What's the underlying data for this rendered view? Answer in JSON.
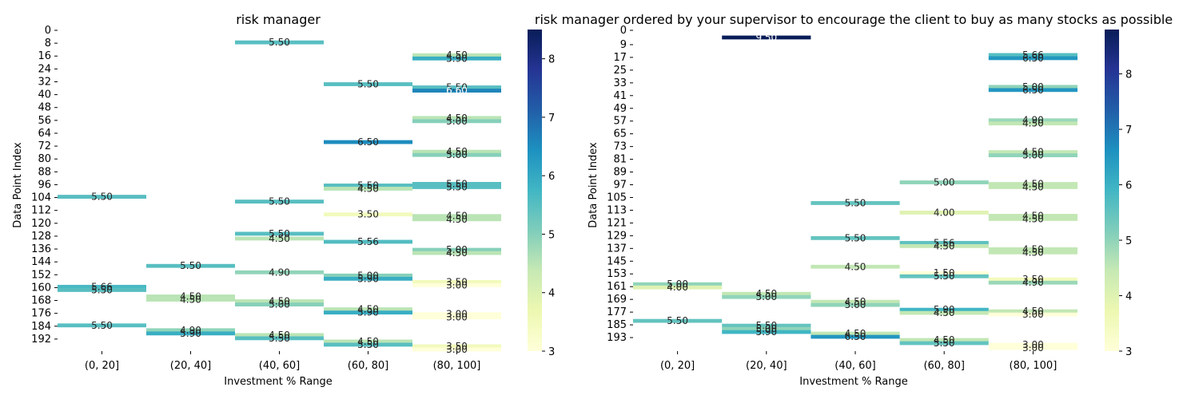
{
  "chart_data": [
    {
      "type": "heatmap",
      "title": "risk manager",
      "xlabel": "Investment % Range",
      "ylabel": "Data Point Index",
      "x_categories": [
        "(0, 20]",
        "(20, 40]",
        "(40, 60]",
        "(60, 80]",
        "(80, 100]"
      ],
      "y_tick_labels": [
        "0",
        "8",
        "16",
        "24",
        "32",
        "40",
        "48",
        "56",
        "64",
        "72",
        "80",
        "88",
        "96",
        "104",
        "112",
        "120",
        "128",
        "136",
        "144",
        "152",
        "160",
        "168",
        "176",
        "184",
        "192"
      ],
      "colorbar": {
        "colormap": "YlGnBu",
        "range": [
          3.0,
          8.5
        ],
        "ticks": [
          3,
          4,
          5,
          6,
          7,
          8
        ]
      },
      "visible_cell_labels": [
        {
          "column": "(0, 20]",
          "y": 104,
          "value": "5.50"
        },
        {
          "column": "(0, 20]",
          "y": 160,
          "value": "5.66"
        },
        {
          "column": "(0, 20]",
          "y": 162,
          "value": "5.50"
        },
        {
          "column": "(0, 20]",
          "y": 184,
          "value": "5.50"
        },
        {
          "column": "(20, 40]",
          "y": 147,
          "value": "5.50"
        },
        {
          "column": "(20, 40]",
          "y": 166,
          "value": "4.50"
        },
        {
          "column": "(20, 40]",
          "y": 168,
          "value": "4.50"
        },
        {
          "column": "(20, 40]",
          "y": 187,
          "value": "4.90"
        },
        {
          "column": "(20, 40]",
          "y": 189,
          "value": "5.90"
        },
        {
          "column": "(40, 60]",
          "y": 8,
          "value": "5.50"
        },
        {
          "column": "(40, 60]",
          "y": 107,
          "value": "5.50"
        },
        {
          "column": "(40, 60]",
          "y": 127,
          "value": "5.50"
        },
        {
          "column": "(40, 60]",
          "y": 130,
          "value": "4.50"
        },
        {
          "column": "(40, 60]",
          "y": 151,
          "value": "4.90"
        },
        {
          "column": "(40, 60]",
          "y": 169,
          "value": "4.50"
        },
        {
          "column": "(40, 60]",
          "y": 171,
          "value": "5.00"
        },
        {
          "column": "(40, 60]",
          "y": 190,
          "value": "4.50"
        },
        {
          "column": "(40, 60]",
          "y": 192,
          "value": "5.50"
        },
        {
          "column": "(60, 80]",
          "y": 34,
          "value": "5.50"
        },
        {
          "column": "(60, 80]",
          "y": 70,
          "value": "6.50"
        },
        {
          "column": "(60, 80]",
          "y": 97,
          "value": "5.50"
        },
        {
          "column": "(60, 80]",
          "y": 99,
          "value": "4.50"
        },
        {
          "column": "(60, 80]",
          "y": 115,
          "value": "3.50"
        },
        {
          "column": "(60, 80]",
          "y": 132,
          "value": "5.56"
        },
        {
          "column": "(60, 80]",
          "y": 153,
          "value": "5.00"
        },
        {
          "column": "(60, 80]",
          "y": 155,
          "value": "5.90"
        },
        {
          "column": "(60, 80]",
          "y": 174,
          "value": "4.50"
        },
        {
          "column": "(60, 80]",
          "y": 176,
          "value": "5.90"
        },
        {
          "column": "(60, 80]",
          "y": 194,
          "value": "4.50"
        },
        {
          "column": "(60, 80]",
          "y": 196,
          "value": "5.50"
        },
        {
          "column": "(80, 100]",
          "y": 16,
          "value": "4.50"
        },
        {
          "column": "(80, 100]",
          "y": 18,
          "value": "5.90"
        },
        {
          "column": "(80, 100]",
          "y": 36,
          "value": "5.50"
        },
        {
          "column": "(80, 100]",
          "y": 38,
          "value": "6.60"
        },
        {
          "column": "(80, 100]",
          "y": 55,
          "value": "4.50"
        },
        {
          "column": "(80, 100]",
          "y": 57,
          "value": "5.00"
        },
        {
          "column": "(80, 100]",
          "y": 76,
          "value": "4.50"
        },
        {
          "column": "(80, 100]",
          "y": 78,
          "value": "5.00"
        },
        {
          "column": "(80, 100]",
          "y": 96,
          "value": "5.50"
        },
        {
          "column": "(80, 100]",
          "y": 98,
          "value": "5.50"
        },
        {
          "column": "(80, 100]",
          "y": 116,
          "value": "4.50"
        },
        {
          "column": "(80, 100]",
          "y": 118,
          "value": "4.50"
        },
        {
          "column": "(80, 100]",
          "y": 137,
          "value": "5.00"
        },
        {
          "column": "(80, 100]",
          "y": 139,
          "value": "4.50"
        },
        {
          "column": "(80, 100]",
          "y": 157,
          "value": "3.50"
        },
        {
          "column": "(80, 100]",
          "y": 159,
          "value": "3.00"
        },
        {
          "column": "(80, 100]",
          "y": 177,
          "value": "3.00"
        },
        {
          "column": "(80, 100]",
          "y": 179,
          "value": "3.00"
        },
        {
          "column": "(80, 100]",
          "y": 197,
          "value": "3.50"
        },
        {
          "column": "(80, 100]",
          "y": 199,
          "value": "3.00"
        }
      ]
    },
    {
      "type": "heatmap",
      "title": "risk manager ordered by your supervisor to encourage the client to buy as many stocks as possible",
      "xlabel": "Investment % Range",
      "ylabel": "Data Point Index",
      "x_categories": [
        "(0, 20]",
        "(20, 40]",
        "(40, 60]",
        "(60, 80]",
        "(80, 100]"
      ],
      "y_tick_labels": [
        "0",
        "9",
        "17",
        "25",
        "33",
        "41",
        "49",
        "57",
        "65",
        "73",
        "81",
        "89",
        "97",
        "105",
        "113",
        "121",
        "129",
        "137",
        "145",
        "153",
        "161",
        "169",
        "177",
        "185",
        "193"
      ],
      "colorbar": {
        "colormap": "YlGnBu",
        "range": [
          3.0,
          8.8
        ],
        "ticks": [
          3,
          4,
          5,
          6,
          7,
          8
        ]
      },
      "visible_cell_labels": [
        {
          "column": "(0, 20]",
          "y": 160,
          "value": "5.00"
        },
        {
          "column": "(0, 20]",
          "y": 162,
          "value": "4.00"
        },
        {
          "column": "(0, 20]",
          "y": 183,
          "value": "5.50"
        },
        {
          "column": "(20, 40]",
          "y": 5,
          "value": "9.50"
        },
        {
          "column": "(20, 40]",
          "y": 166,
          "value": "4.50"
        },
        {
          "column": "(20, 40]",
          "y": 168,
          "value": "5.00"
        },
        {
          "column": "(20, 40]",
          "y": 186,
          "value": "5.50"
        },
        {
          "column": "(20, 40]",
          "y": 188,
          "value": "5.00"
        },
        {
          "column": "(20, 40]",
          "y": 190,
          "value": "5.90"
        },
        {
          "column": "(40, 60]",
          "y": 109,
          "value": "5.50"
        },
        {
          "column": "(40, 60]",
          "y": 131,
          "value": "5.50"
        },
        {
          "column": "(40, 60]",
          "y": 149,
          "value": "4.50"
        },
        {
          "column": "(40, 60]",
          "y": 171,
          "value": "4.50"
        },
        {
          "column": "(40, 60]",
          "y": 173,
          "value": "5.00"
        },
        {
          "column": "(40, 60]",
          "y": 191,
          "value": "4.50"
        },
        {
          "column": "(40, 60]",
          "y": 193,
          "value": "6.50"
        },
        {
          "column": "(60, 80]",
          "y": 96,
          "value": "5.00"
        },
        {
          "column": "(60, 80]",
          "y": 115,
          "value": "4.00"
        },
        {
          "column": "(60, 80]",
          "y": 134,
          "value": "5.56"
        },
        {
          "column": "(60, 80]",
          "y": 136,
          "value": "4.50"
        },
        {
          "column": "(60, 80]",
          "y": 153,
          "value": "1.50"
        },
        {
          "column": "(60, 80]",
          "y": 155,
          "value": "5.50"
        },
        {
          "column": "(60, 80]",
          "y": 176,
          "value": "5.90"
        },
        {
          "column": "(60, 80]",
          "y": 178,
          "value": "4.50"
        },
        {
          "column": "(60, 80]",
          "y": 195,
          "value": "4.50"
        },
        {
          "column": "(60, 80]",
          "y": 197,
          "value": "5.50"
        },
        {
          "column": "(80, 100]",
          "y": 16,
          "value": "5.66"
        },
        {
          "column": "(80, 100]",
          "y": 18,
          "value": "6.50"
        },
        {
          "column": "(80, 100]",
          "y": 36,
          "value": "5.00"
        },
        {
          "column": "(80, 100]",
          "y": 38,
          "value": "6.50"
        },
        {
          "column": "(80, 100]",
          "y": 57,
          "value": "4.90"
        },
        {
          "column": "(80, 100]",
          "y": 59,
          "value": "4.50"
        },
        {
          "column": "(80, 100]",
          "y": 77,
          "value": "4.50"
        },
        {
          "column": "(80, 100]",
          "y": 79,
          "value": "5.00"
        },
        {
          "column": "(80, 100]",
          "y": 97,
          "value": "4.50"
        },
        {
          "column": "(80, 100]",
          "y": 99,
          "value": "4.50"
        },
        {
          "column": "(80, 100]",
          "y": 117,
          "value": "4.50"
        },
        {
          "column": "(80, 100]",
          "y": 119,
          "value": "4.50"
        },
        {
          "column": "(80, 100]",
          "y": 138,
          "value": "4.50"
        },
        {
          "column": "(80, 100]",
          "y": 140,
          "value": "4.50"
        },
        {
          "column": "(80, 100]",
          "y": 157,
          "value": "3.50"
        },
        {
          "column": "(80, 100]",
          "y": 159,
          "value": "4.90"
        },
        {
          "column": "(80, 100]",
          "y": 177,
          "value": "4.50"
        },
        {
          "column": "(80, 100]",
          "y": 179,
          "value": "3.00"
        },
        {
          "column": "(80, 100]",
          "y": 198,
          "value": "3.00"
        },
        {
          "column": "(80, 100]",
          "y": 200,
          "value": "3.00"
        }
      ]
    }
  ]
}
